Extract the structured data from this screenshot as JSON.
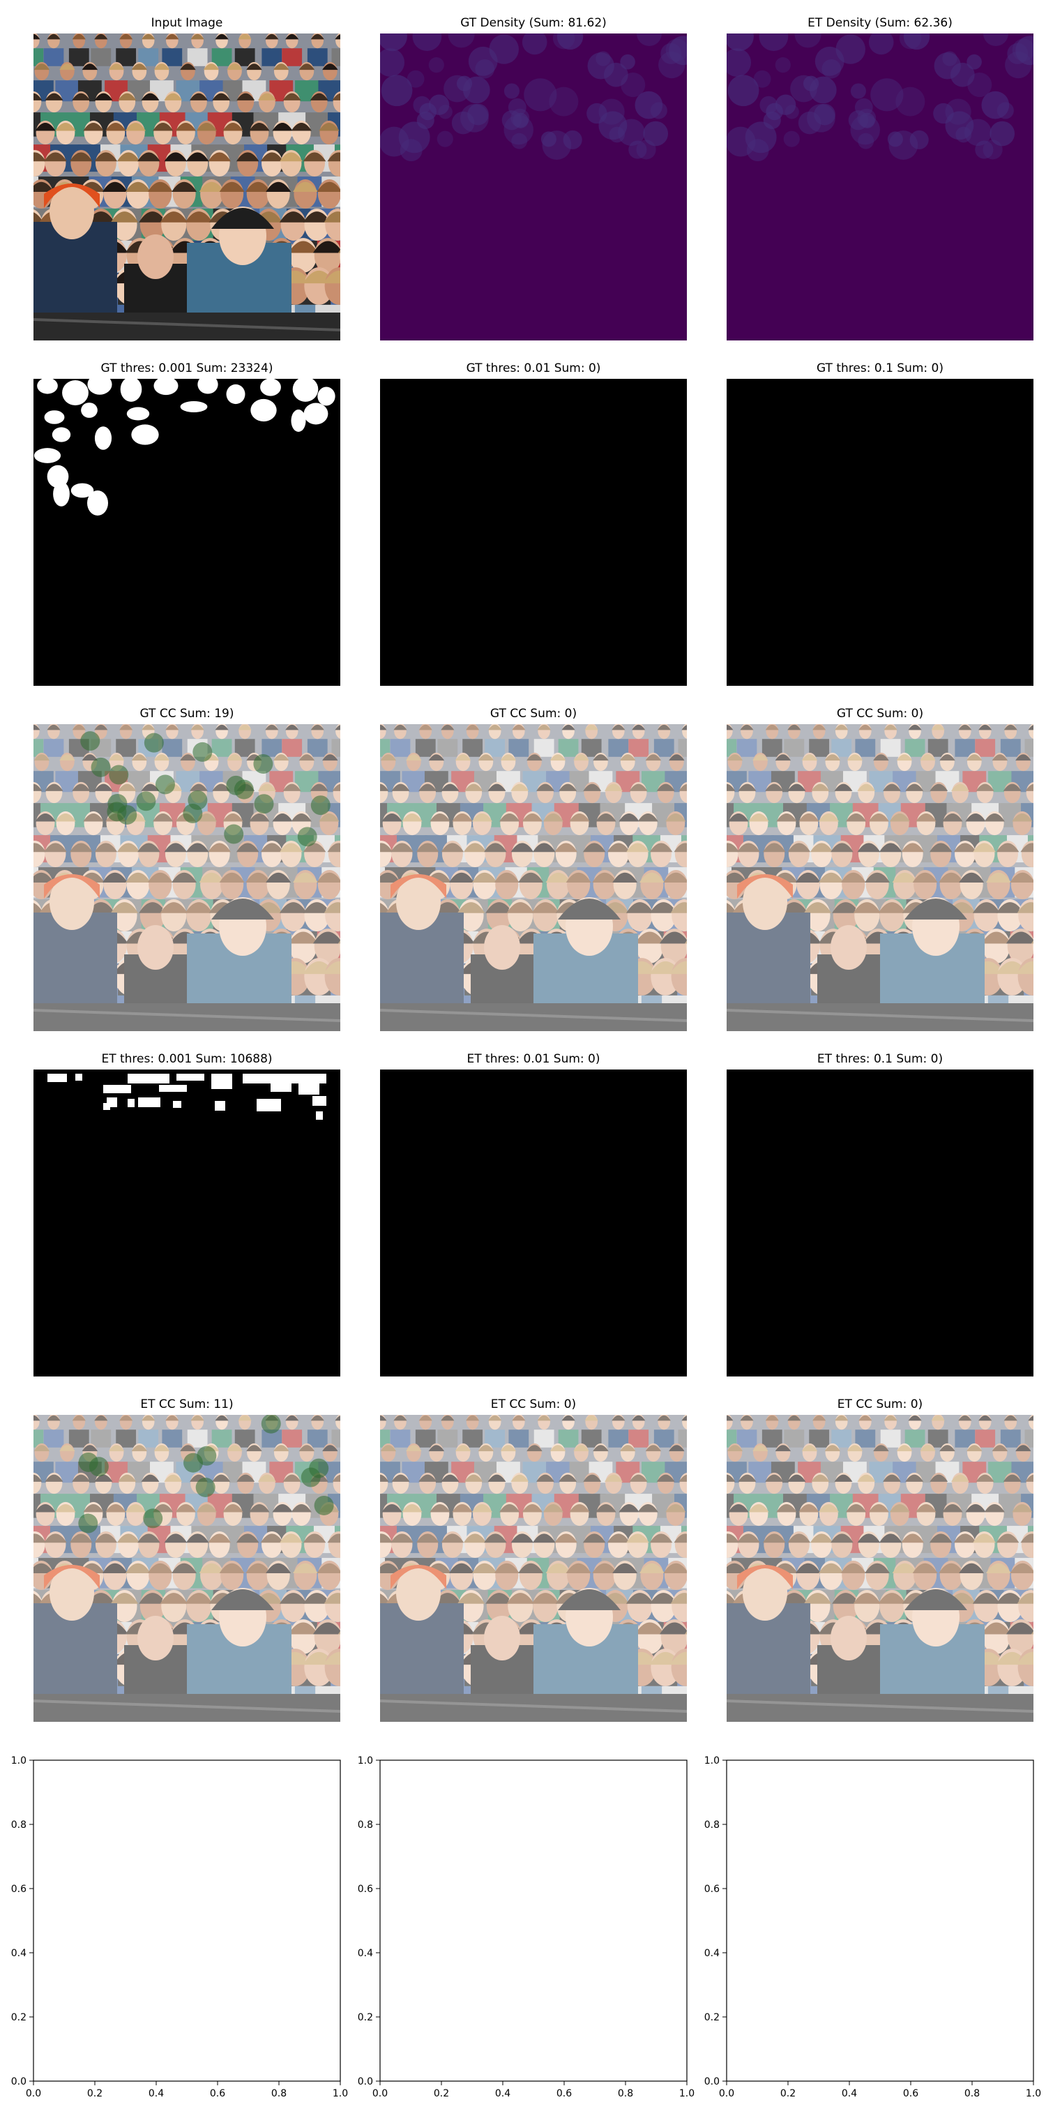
{
  "figure": {
    "rows": [
      [
        {
          "title": "Input Image",
          "kind": "crowd"
        },
        {
          "title": "GT Density (Sum: 81.62)",
          "kind": "density"
        },
        {
          "title": "ET Density (Sum: 62.36)",
          "kind": "density"
        }
      ],
      [
        {
          "title": "GT thres: 0.001 Sum: 23324)",
          "kind": "mask_blobs"
        },
        {
          "title": "GT thres: 0.01 Sum: 0)",
          "kind": "mask_empty"
        },
        {
          "title": "GT thres: 0.1 Sum: 0)",
          "kind": "mask_empty"
        }
      ],
      [
        {
          "title": "GT CC Sum: 19)",
          "kind": "crowd_faded_marked"
        },
        {
          "title": "GT CC Sum: 0)",
          "kind": "crowd_faded"
        },
        {
          "title": "GT CC Sum: 0)",
          "kind": "crowd_faded"
        }
      ],
      [
        {
          "title": "ET thres: 0.001 Sum: 10688)",
          "kind": "mask_blocks"
        },
        {
          "title": "ET thres: 0.01 Sum: 0)",
          "kind": "mask_empty"
        },
        {
          "title": "ET thres: 0.1 Sum: 0)",
          "kind": "mask_empty"
        }
      ],
      [
        {
          "title": "ET CC Sum: 11)",
          "kind": "crowd_faded_marked"
        },
        {
          "title": "ET CC Sum: 0)",
          "kind": "crowd_faded"
        },
        {
          "title": "ET CC Sum: 0)",
          "kind": "crowd_faded"
        }
      ]
    ]
  },
  "chart_data": [
    {
      "type": "scatter",
      "title": "",
      "xlabel": "",
      "ylabel": "",
      "xlim": [
        0,
        1
      ],
      "ylim": [
        0,
        1
      ],
      "xticks": [
        "0.0",
        "0.2",
        "0.4",
        "0.6",
        "0.8",
        "1.0"
      ],
      "yticks": [
        "0.0",
        "0.2",
        "0.4",
        "0.6",
        "0.8",
        "1.0"
      ],
      "series": []
    },
    {
      "type": "scatter",
      "title": "",
      "xlabel": "",
      "ylabel": "",
      "xlim": [
        0,
        1
      ],
      "ylim": [
        0,
        1
      ],
      "xticks": [
        "0.0",
        "0.2",
        "0.4",
        "0.6",
        "0.8",
        "1.0"
      ],
      "yticks": [
        "0.0",
        "0.2",
        "0.4",
        "0.6",
        "0.8",
        "1.0"
      ],
      "series": []
    },
    {
      "type": "scatter",
      "title": "",
      "xlabel": "",
      "ylabel": "",
      "xlim": [
        0,
        1
      ],
      "ylim": [
        0,
        1
      ],
      "xticks": [
        "0.0",
        "0.2",
        "0.4",
        "0.6",
        "0.8",
        "1.0"
      ],
      "yticks": [
        "0.0",
        "0.2",
        "0.4",
        "0.6",
        "0.8",
        "1.0"
      ],
      "series": []
    }
  ],
  "colors": {
    "density_bg": "#440154",
    "density_spot": "#472d7b",
    "mask_bg": "#000000",
    "mask_fg": "#ffffff",
    "marker": "#2f6b2f"
  }
}
